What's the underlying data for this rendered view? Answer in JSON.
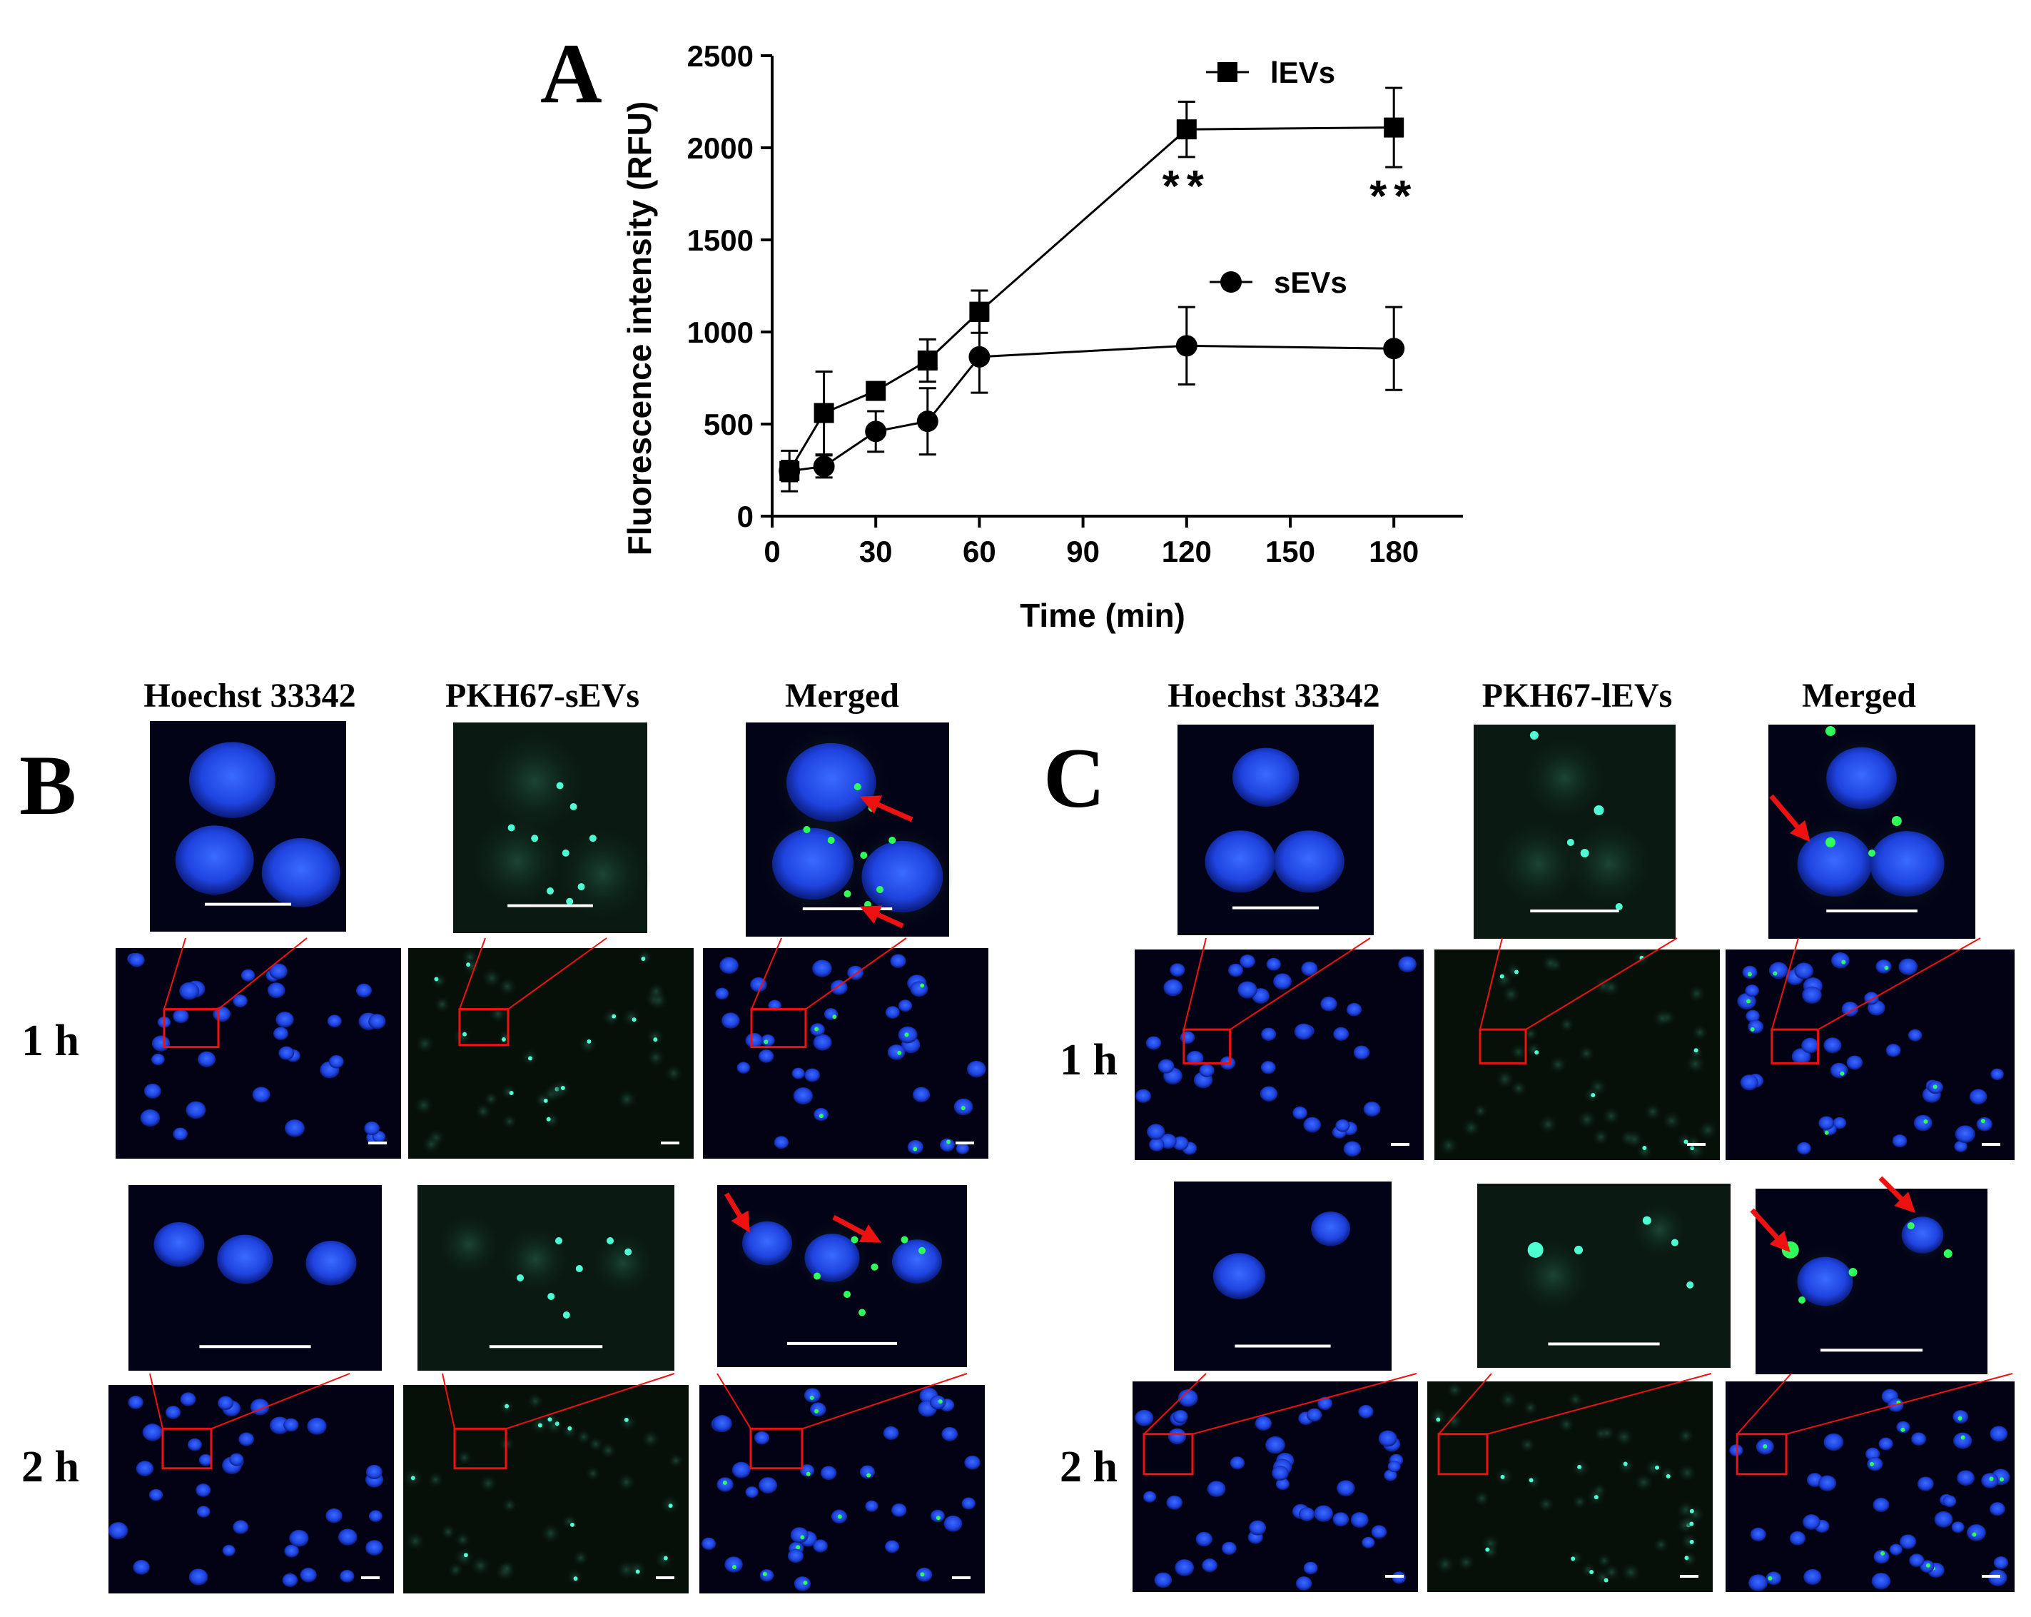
{
  "panel_labels": {
    "a": "A",
    "b": "B",
    "c": "C"
  },
  "chart_data": {
    "type": "line",
    "xlabel": "Time (min)",
    "ylabel": "Fluorescence intensity (RFU)",
    "xlim": [
      0,
      200
    ],
    "ylim": [
      0,
      2500
    ],
    "xticks": [
      0,
      30,
      60,
      90,
      120,
      150,
      180
    ],
    "yticks": [
      0,
      500,
      1000,
      1500,
      2000,
      2500
    ],
    "grid": false,
    "legend": "top-right",
    "series": [
      {
        "name": "lEVs",
        "marker": "square",
        "x": [
          5,
          15,
          30,
          45,
          60,
          120,
          180
        ],
        "y": [
          245,
          560,
          680,
          845,
          1110,
          2100,
          2110
        ],
        "err": [
          110,
          225,
          40,
          115,
          115,
          150,
          215
        ]
      },
      {
        "name": "sEVs",
        "marker": "circle",
        "x": [
          5,
          15,
          30,
          45,
          60,
          120,
          180
        ],
        "y": [
          245,
          270,
          460,
          515,
          865,
          925,
          910
        ],
        "err": [
          55,
          60,
          110,
          180,
          195,
          210,
          225
        ]
      }
    ],
    "annotations": [
      {
        "text": "**",
        "x": 120,
        "series": "lEVs"
      },
      {
        "text": "**",
        "x": 180,
        "series": "lEVs"
      }
    ]
  },
  "panel_b": {
    "headers": [
      "Hoechst 33342",
      "PKH67-sEVs",
      "Merged"
    ],
    "rows": [
      "1 h",
      "2 h"
    ]
  },
  "panel_c": {
    "headers": [
      "Hoechst 33342",
      "PKH67-lEVs",
      "Merged"
    ],
    "rows": [
      "1 h",
      "2 h"
    ]
  }
}
